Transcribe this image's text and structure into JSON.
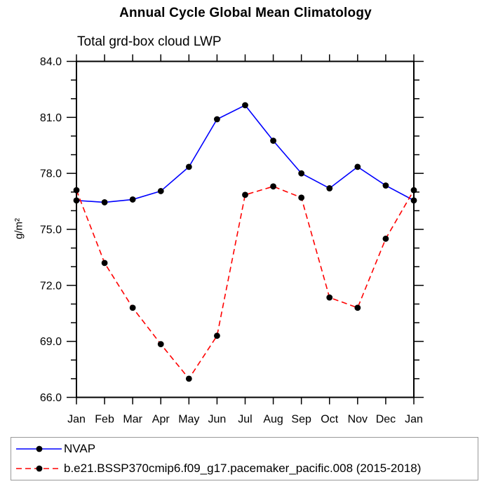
{
  "chart_data": {
    "type": "line",
    "title": "Annual Cycle Global Mean Climatology",
    "subtitle": "Total grd-box cloud LWP",
    "ylabel": "g/m²",
    "categories": [
      "Jan",
      "Feb",
      "Mar",
      "Apr",
      "May",
      "Jun",
      "Jul",
      "Aug",
      "Sep",
      "Oct",
      "Nov",
      "Dec",
      "Jan"
    ],
    "series": [
      {
        "name": "NVAP",
        "color": "#0000ff",
        "style": "solid",
        "marker": "filled-circle",
        "marker_color": "#000000",
        "values": [
          76.55,
          76.45,
          76.6,
          77.05,
          78.35,
          80.9,
          81.65,
          79.75,
          78.0,
          77.2,
          78.35,
          77.35,
          76.55
        ]
      },
      {
        "name": "b.e21.BSSP370cmip6.f09_g17.pacemaker_pacific.008 (2015-2018)",
        "color": "#ff0000",
        "style": "dashed",
        "marker": "filled-circle",
        "marker_color": "#000000",
        "values": [
          77.1,
          73.2,
          70.8,
          68.85,
          67.0,
          69.3,
          76.85,
          77.3,
          76.7,
          71.35,
          70.8,
          74.5,
          77.1
        ]
      }
    ],
    "ylim": [
      66,
      84
    ],
    "ytick_major": 3,
    "ytick_minor": 1,
    "ytick_labels": [
      "66.0",
      "69.0",
      "72.0",
      "75.0",
      "78.0",
      "81.0",
      "84.0"
    ],
    "grid": false,
    "axis_color": "#000000",
    "legend_position": "bottom-box"
  }
}
